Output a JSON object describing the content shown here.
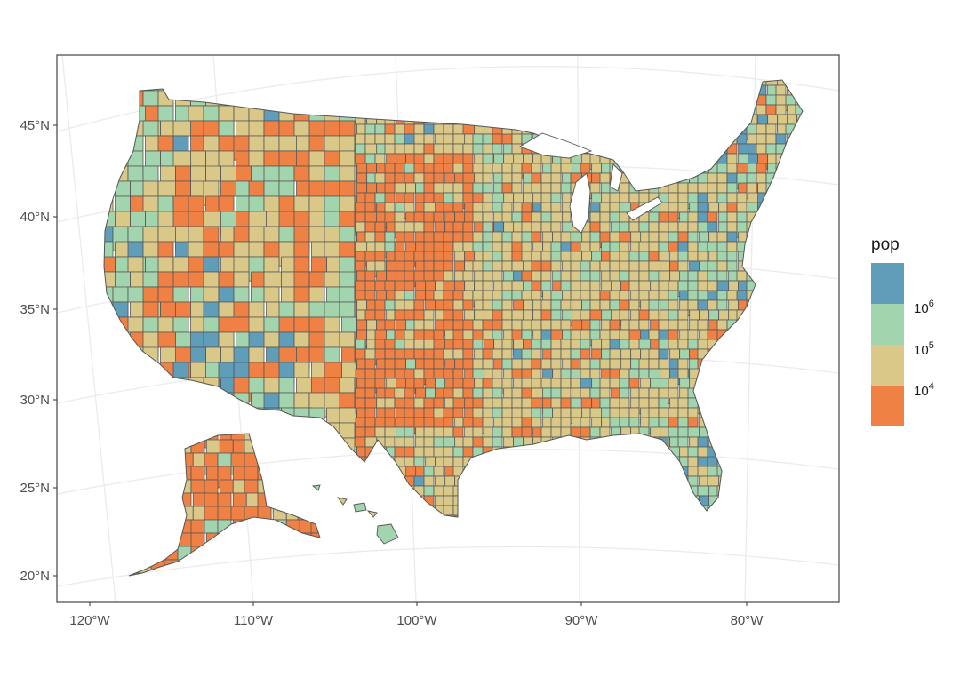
{
  "map": {
    "graticule": {
      "lat_labels": [
        "45°N",
        "40°N",
        "35°N",
        "30°N",
        "25°N",
        "20°N"
      ],
      "lon_labels": [
        "120°W",
        "110°W",
        "100°W",
        "90°W",
        "80°W"
      ]
    },
    "legend": {
      "title": "pop",
      "fill_variable": "population (log10 scale)",
      "breaks": [
        {
          "base": "10",
          "exp": "6"
        },
        {
          "base": "10",
          "exp": "5"
        },
        {
          "base": "10",
          "exp": "4"
        }
      ],
      "bins": [
        {
          "label": "≥ 10^6",
          "color": "#5f9db8"
        },
        {
          "label": "10^5 – 10^6",
          "color": "#a2d4ae"
        },
        {
          "label": "10^4 – 10^5",
          "color": "#d9c888"
        },
        {
          "label": "< 10^4",
          "color": "#f08144"
        }
      ]
    },
    "colors": {
      "panel_border": "#333333",
      "county_outline": "#555555",
      "graticule": "#ebebeb",
      "ocean_background": "#ffffff"
    },
    "regions": [
      "contiguous-us-counties",
      "alaska",
      "hawaii"
    ]
  }
}
